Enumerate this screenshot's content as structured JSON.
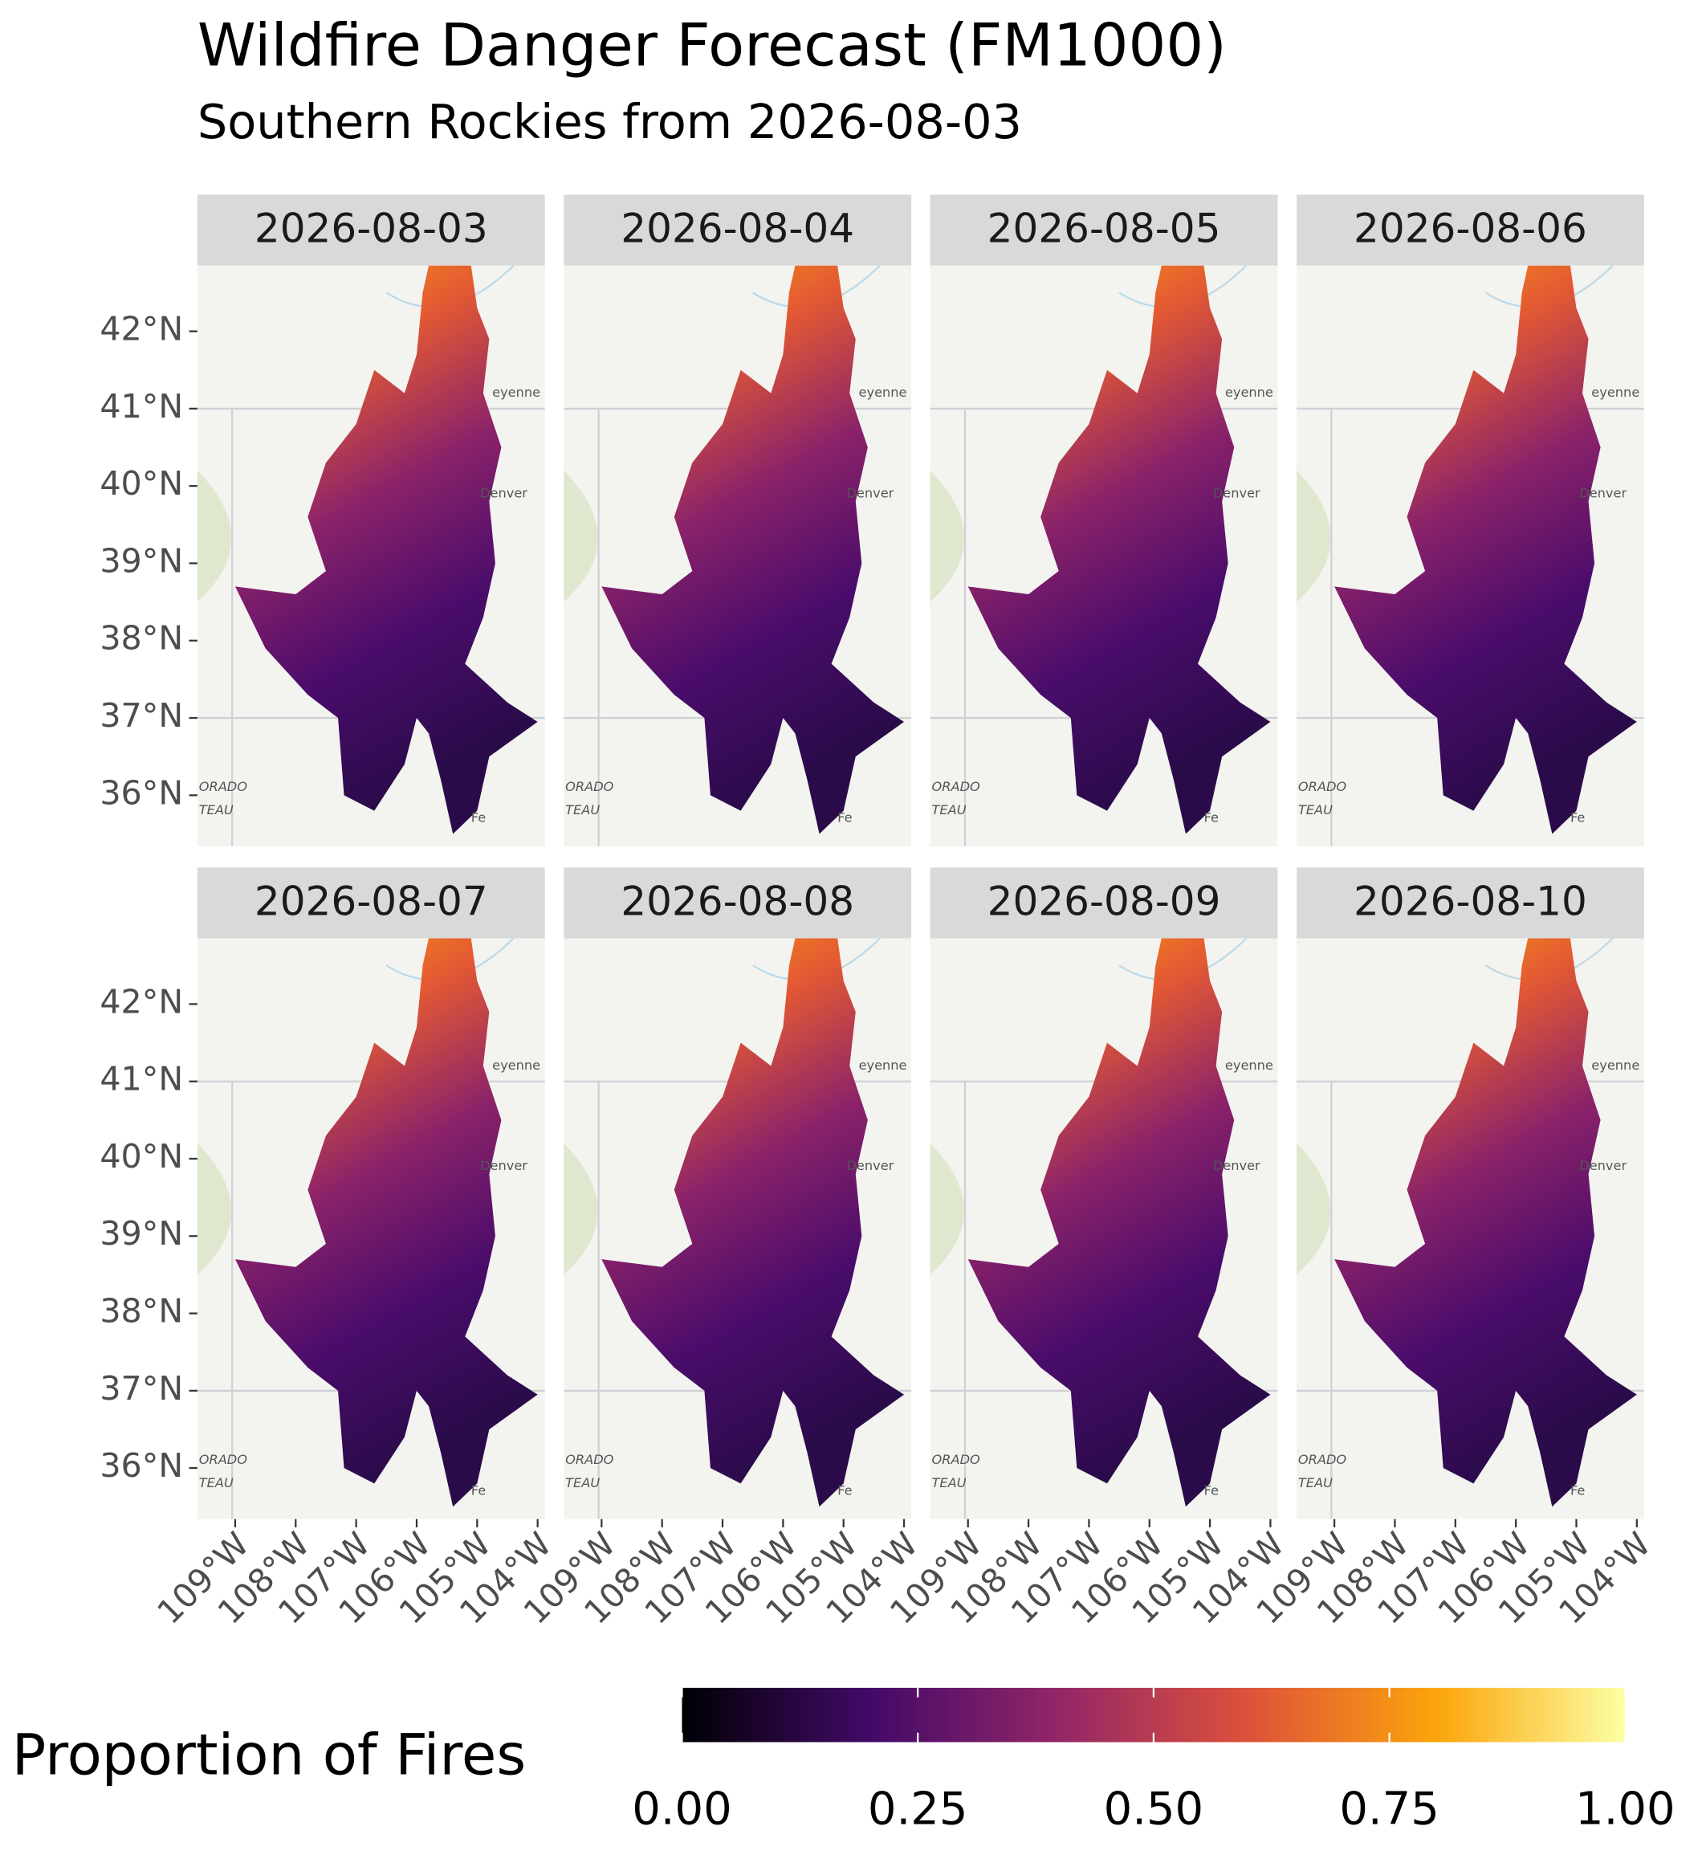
{
  "chart_data": {
    "type": "map",
    "title": "Wildfire Danger Forecast (FM1000)",
    "subtitle": "Southern Rockies from 2026-08-03",
    "panels": [
      "2026-08-03",
      "2026-08-04",
      "2026-08-05",
      "2026-08-06",
      "2026-08-07",
      "2026-08-08",
      "2026-08-09",
      "2026-08-10"
    ],
    "xlim": [
      -109.625,
      -103.88
    ],
    "ylim": [
      35.34,
      42.85
    ],
    "xticks": [
      {
        "value": -109,
        "label": "109°W"
      },
      {
        "value": -108,
        "label": "108°W"
      },
      {
        "value": -107,
        "label": "107°W"
      },
      {
        "value": -106,
        "label": "106°W"
      },
      {
        "value": -105,
        "label": "105°W"
      },
      {
        "value": -104,
        "label": "104°W"
      }
    ],
    "yticks": [
      {
        "value": 36,
        "label": "36°N"
      },
      {
        "value": 37,
        "label": "37°N"
      },
      {
        "value": 38,
        "label": "38°N"
      },
      {
        "value": 39,
        "label": "39°N"
      },
      {
        "value": 40,
        "label": "40°N"
      },
      {
        "value": 41,
        "label": "41°N"
      },
      {
        "value": 42,
        "label": "42°N"
      }
    ],
    "basemap_labels": [
      "eyenne",
      "Denver",
      "ORADO",
      "TEAU",
      "Fe"
    ],
    "legend": {
      "title": "Proportion of Fires",
      "lim": [
        0,
        1
      ],
      "ticks": [
        {
          "value": 0,
          "label": "0.00"
        },
        {
          "value": 0.25,
          "label": "0.25"
        },
        {
          "value": 0.5,
          "label": "0.50"
        },
        {
          "value": 0.75,
          "label": "0.75"
        },
        {
          "value": 1,
          "label": "1.00"
        }
      ],
      "colors": [
        "#000004",
        "#420a68",
        "#932667",
        "#dd513a",
        "#fca50a",
        "#fcffa4"
      ]
    }
  }
}
